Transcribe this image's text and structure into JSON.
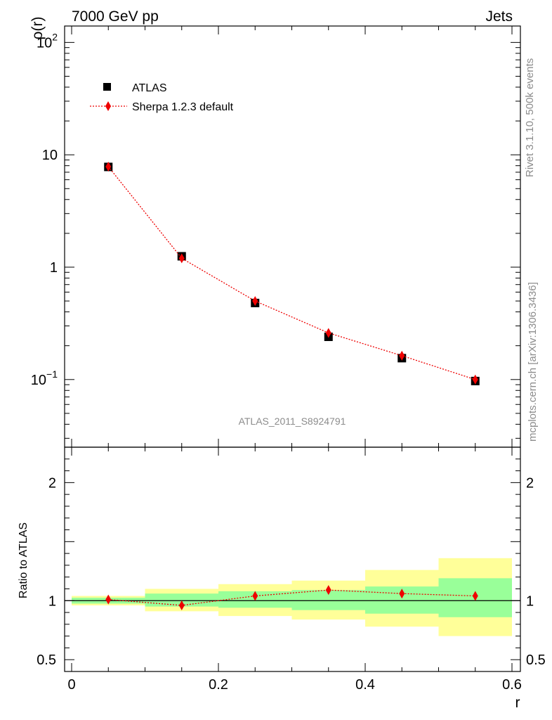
{
  "header": {
    "left": "7000 GeV pp",
    "right": "Jets"
  },
  "side_text": {
    "rivet": "Rivet 3.1.10,  500k events",
    "mcplots": "mcplots.cern.ch [arXiv:1306.3436]"
  },
  "analysis_id": "ATLAS_2011_S8924791",
  "colors": {
    "data": "#000000",
    "mc": "#ee0000",
    "band_inner": "#99ff99",
    "band_outer": "#ffff99"
  },
  "chart_data": [
    {
      "type": "scatter",
      "scale_y": "log",
      "xlabel": "r",
      "ylabel": "ρ(r)",
      "xlim": [
        0,
        0.6
      ],
      "ylim": [
        0.025,
        140
      ],
      "yticks": [
        {
          "value": 100,
          "base": "10",
          "exp": "2"
        },
        {
          "value": 10,
          "text": "10"
        },
        {
          "value": 1,
          "text": "1"
        },
        {
          "value": 0.1,
          "base": "10",
          "exp": "−1"
        }
      ],
      "legend_position": "top-left",
      "series": [
        {
          "name": "ATLAS",
          "marker": "square",
          "x": [
            0.05,
            0.15,
            0.25,
            0.35,
            0.45,
            0.55
          ],
          "y": [
            7.8,
            1.25,
            0.48,
            0.24,
            0.155,
            0.097
          ]
        },
        {
          "name": "Sherpa 1.2.3 default",
          "marker": "diamond",
          "line": "dotted",
          "x": [
            0.05,
            0.15,
            0.25,
            0.35,
            0.45,
            0.55
          ],
          "y": [
            7.85,
            1.2,
            0.5,
            0.26,
            0.163,
            0.1
          ]
        }
      ]
    },
    {
      "type": "scatter",
      "xlabel": "r",
      "ylabel": "Ratio to ATLAS",
      "xlim": [
        0,
        0.6
      ],
      "ylim": [
        0.4,
        2.3
      ],
      "xticks": [
        {
          "value": 0,
          "text": "0"
        },
        {
          "value": 0.2,
          "text": "0.2"
        },
        {
          "value": 0.4,
          "text": "0.4"
        },
        {
          "value": 0.6,
          "text": "0.6"
        }
      ],
      "yticks": [
        {
          "value": 0.5,
          "text": "0.5"
        },
        {
          "value": 1,
          "text": "1"
        },
        {
          "value": 2,
          "text": "2"
        }
      ],
      "bands": [
        {
          "x0": 0.0,
          "x1": 0.1,
          "inner": [
            0.975,
            1.025
          ],
          "outer": [
            0.96,
            1.04
          ]
        },
        {
          "x0": 0.1,
          "x1": 0.2,
          "inner": [
            0.95,
            1.06
          ],
          "outer": [
            0.91,
            1.1
          ]
        },
        {
          "x0": 0.2,
          "x1": 0.3,
          "inner": [
            0.94,
            1.08
          ],
          "outer": [
            0.87,
            1.14
          ]
        },
        {
          "x0": 0.3,
          "x1": 0.4,
          "inner": [
            0.92,
            1.09
          ],
          "outer": [
            0.84,
            1.17
          ]
        },
        {
          "x0": 0.4,
          "x1": 0.5,
          "inner": [
            0.89,
            1.12
          ],
          "outer": [
            0.78,
            1.26
          ]
        },
        {
          "x0": 0.5,
          "x1": 0.6,
          "inner": [
            0.86,
            1.19
          ],
          "outer": [
            0.7,
            1.36
          ]
        }
      ],
      "series": [
        {
          "name": "Sherpa 1.2.3 default",
          "x": [
            0.05,
            0.15,
            0.25,
            0.35,
            0.45,
            0.55
          ],
          "y": [
            1.01,
            0.96,
            1.04,
            1.09,
            1.06,
            1.04
          ]
        }
      ]
    }
  ]
}
